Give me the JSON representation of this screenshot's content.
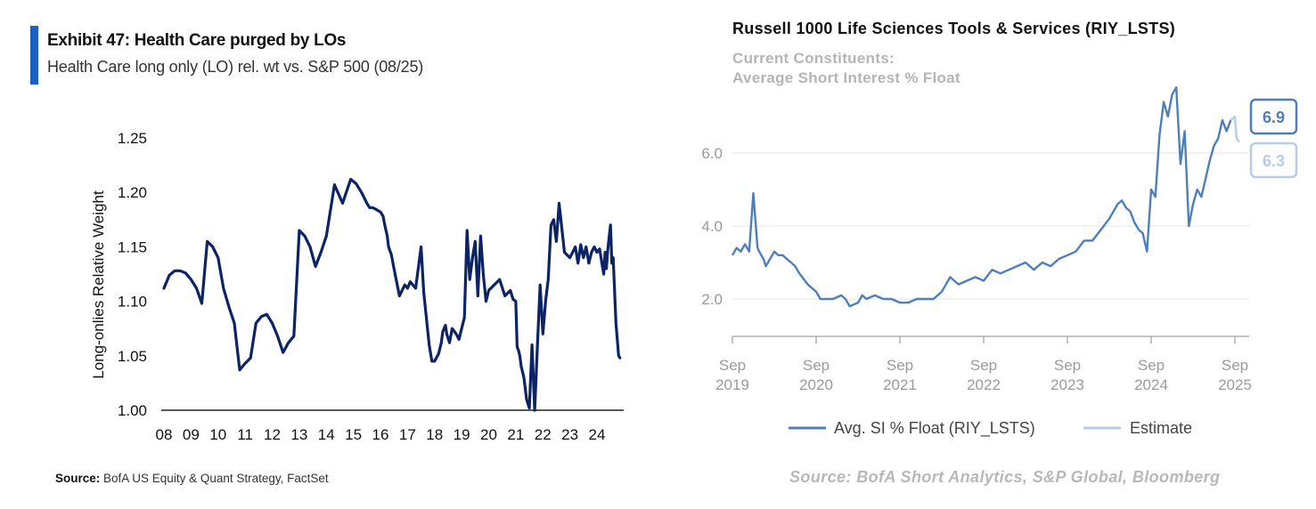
{
  "colors": {
    "accent": "#1d5fbf",
    "left_line": "#0c2466",
    "right_line": "#4f7fba",
    "estimate_line": "#b6cde8"
  },
  "left": {
    "title": "Exhibit 47: Health Care purged by LOs",
    "subtitle": "Health Care long only (LO) rel. wt vs. S&P 500 (08/25)",
    "source_label": "Source:",
    "source_text": " BofA US Equity & Quant Strategy, FactSet"
  },
  "right": {
    "title": "Russell 1000 Life Sciences Tools & Services (RIY_LSTS)",
    "subtitle_line1": "Current Constituents:",
    "subtitle_line2": "Average Short Interest % Float",
    "source": "Source: BofA Short Analytics, S&P Global, Bloomberg"
  },
  "chart_data": [
    {
      "type": "line",
      "title": "",
      "xlabel": "",
      "ylabel": "Long-onlies Relative Weight",
      "xlim": [
        2008.0,
        2025.9
      ],
      "ylim": [
        1.0,
        1.25
      ],
      "yticks": [
        1.0,
        1.05,
        1.1,
        1.15,
        1.2,
        1.25
      ],
      "ytick_labels": [
        "1.00",
        "1.05",
        "1.10",
        "1.15",
        "1.20",
        "1.25"
      ],
      "xticks": [
        2008,
        2009,
        2010,
        2011,
        2012,
        2013,
        2014,
        2015,
        2016,
        2017,
        2018,
        2019,
        2020,
        2021,
        2022,
        2023,
        2024
      ],
      "xtick_labels": [
        "08",
        "09",
        "10",
        "11",
        "12",
        "13",
        "14",
        "15",
        "16",
        "17",
        "18",
        "19",
        "20",
        "21",
        "22",
        "23",
        "24"
      ],
      "grid": false,
      "series": [
        {
          "x": [
            2008.0,
            2008.2,
            2008.4,
            2008.6,
            2008.8,
            2009.0,
            2009.2,
            2009.4,
            2009.6,
            2009.8,
            2010.0,
            2010.2,
            2010.4,
            2010.6,
            2010.8,
            2011.0,
            2011.2,
            2011.4,
            2011.6,
            2011.8,
            2012.0,
            2012.2,
            2012.4,
            2012.6,
            2012.8,
            2013.0,
            2013.2,
            2013.4,
            2013.6,
            2013.8,
            2014.0,
            2014.3,
            2014.6,
            2014.9,
            2015.1,
            2015.3,
            2015.5,
            2015.6,
            2015.7,
            2015.8,
            2016.0,
            2016.1,
            2016.15,
            2016.25,
            2016.3,
            2016.4,
            2016.5,
            2016.7,
            2016.9,
            2017.0,
            2017.1,
            2017.3,
            2017.5,
            2017.6,
            2017.8,
            2017.9,
            2018.0,
            2018.15,
            2018.25,
            2018.3,
            2018.4,
            2018.45,
            2018.55,
            2018.65,
            2018.8,
            2018.9,
            2019.0,
            2019.1,
            2019.2,
            2019.3,
            2019.4,
            2019.5,
            2019.6,
            2019.7,
            2019.8,
            2019.9,
            2020.0,
            2020.2,
            2020.4,
            2020.6,
            2020.8,
            2020.9,
            2021.0,
            2021.05,
            2021.1,
            2021.15,
            2021.2,
            2021.3,
            2021.35,
            2021.4,
            2021.5,
            2021.6,
            2021.7,
            2021.8,
            2021.9,
            2022.0,
            2022.1,
            2022.2,
            2022.3,
            2022.4,
            2022.5,
            2022.6,
            2022.8,
            2023.0,
            2023.1,
            2023.2,
            2023.3,
            2023.4,
            2023.5,
            2023.6,
            2023.7,
            2023.8,
            2023.9,
            2024.0,
            2024.1,
            2024.2,
            2024.25,
            2024.3,
            2024.35,
            2024.4,
            2024.5,
            2024.55,
            2024.6,
            2024.7,
            2024.8,
            2024.85
          ],
          "values": [
            1.112,
            1.124,
            1.128,
            1.128,
            1.126,
            1.12,
            1.112,
            1.098,
            1.155,
            1.15,
            1.14,
            1.112,
            1.095,
            1.08,
            1.037,
            1.043,
            1.048,
            1.08,
            1.086,
            1.088,
            1.08,
            1.068,
            1.053,
            1.062,
            1.068,
            1.165,
            1.16,
            1.15,
            1.132,
            1.145,
            1.16,
            1.207,
            1.19,
            1.212,
            1.208,
            1.2,
            1.19,
            1.186,
            1.186,
            1.185,
            1.182,
            1.178,
            1.171,
            1.16,
            1.15,
            1.143,
            1.13,
            1.105,
            1.115,
            1.112,
            1.118,
            1.112,
            1.15,
            1.108,
            1.06,
            1.045,
            1.045,
            1.052,
            1.062,
            1.072,
            1.078,
            1.07,
            1.062,
            1.075,
            1.07,
            1.065,
            1.075,
            1.085,
            1.165,
            1.12,
            1.14,
            1.155,
            1.105,
            1.16,
            1.125,
            1.1,
            1.11,
            1.115,
            1.12,
            1.105,
            1.11,
            1.102,
            1.1,
            1.058,
            1.055,
            1.05,
            1.04,
            1.03,
            1.02,
            1.01,
            1.002,
            1.06,
            1.0,
            1.06,
            1.115,
            1.07,
            1.1,
            1.12,
            1.17,
            1.175,
            1.155,
            1.19,
            1.145,
            1.14,
            1.145,
            1.15,
            1.135,
            1.152,
            1.14,
            1.15,
            1.135,
            1.145,
            1.15,
            1.145,
            1.148,
            1.132,
            1.125,
            1.145,
            1.13,
            1.148,
            1.17,
            1.135,
            1.14,
            1.08,
            1.05,
            1.048
          ]
        }
      ]
    },
    {
      "type": "line",
      "title": "Russell 1000 Life Sciences Tools & Services (RIY_LSTS)",
      "xlabel": "",
      "ylabel": "",
      "xlim": [
        2019.7,
        2025.9
      ],
      "ylim": [
        0.0,
        8.0
      ],
      "yticks": [
        2.0,
        4.0,
        6.0
      ],
      "ytick_labels": [
        "2.0",
        "4.0",
        "6.0"
      ],
      "xticks": [
        2019.7,
        2020.7,
        2021.7,
        2022.7,
        2023.7,
        2024.7,
        2025.7
      ],
      "xtick_labels_line1": [
        "Sep",
        "Sep",
        "Sep",
        "Sep",
        "Sep",
        "Sep",
        "Sep"
      ],
      "xtick_labels_line2": [
        "2019",
        "2020",
        "2021",
        "2022",
        "2023",
        "2024",
        "2025"
      ],
      "grid": true,
      "legend_position": "bottom",
      "last_value_labels": {
        "actual": "6.9",
        "estimate": "6.3"
      },
      "series": [
        {
          "name": "Avg. SI % Float (RIY_LSTS)",
          "x": [
            2019.7,
            2019.75,
            2019.8,
            2019.85,
            2019.9,
            2019.95,
            2020.0,
            2020.02,
            2020.07,
            2020.1,
            2020.2,
            2020.25,
            2020.3,
            2020.4,
            2020.45,
            2020.5,
            2020.6,
            2020.7,
            2020.75,
            2020.8,
            2020.9,
            2021.0,
            2021.05,
            2021.1,
            2021.2,
            2021.25,
            2021.3,
            2021.4,
            2021.5,
            2021.6,
            2021.7,
            2021.8,
            2021.9,
            2022.0,
            2022.1,
            2022.2,
            2022.3,
            2022.35,
            2022.4,
            2022.5,
            2022.6,
            2022.7,
            2022.8,
            2022.9,
            2023.0,
            2023.1,
            2023.2,
            2023.3,
            2023.4,
            2023.5,
            2023.6,
            2023.7,
            2023.8,
            2023.9,
            2024.0,
            2024.1,
            2024.2,
            2024.3,
            2024.35,
            2024.4,
            2024.45,
            2024.5,
            2024.55,
            2024.6,
            2024.65,
            2024.7,
            2024.75,
            2024.8,
            2024.85,
            2024.9,
            2024.95,
            2025.0,
            2025.05,
            2025.1,
            2025.15,
            2025.2,
            2025.25,
            2025.3,
            2025.35,
            2025.4,
            2025.45,
            2025.5,
            2025.55,
            2025.6,
            2025.65
          ],
          "values": [
            3.2,
            3.4,
            3.3,
            3.5,
            3.3,
            4.9,
            3.4,
            3.3,
            3.1,
            2.9,
            3.3,
            3.2,
            3.2,
            3.0,
            2.9,
            2.7,
            2.4,
            2.2,
            2.0,
            2.0,
            2.0,
            2.1,
            2.0,
            1.8,
            1.9,
            2.1,
            2.0,
            2.1,
            2.0,
            2.0,
            1.9,
            1.9,
            2.0,
            2.0,
            2.0,
            2.2,
            2.6,
            2.5,
            2.4,
            2.5,
            2.6,
            2.5,
            2.8,
            2.7,
            2.8,
            2.9,
            3.0,
            2.8,
            3.0,
            2.9,
            3.1,
            3.2,
            3.3,
            3.6,
            3.6,
            3.9,
            4.2,
            4.6,
            4.7,
            4.5,
            4.4,
            4.1,
            3.9,
            3.8,
            3.3,
            5.0,
            4.8,
            6.5,
            7.4,
            7.0,
            7.6,
            7.8,
            5.7,
            6.6,
            4.0,
            4.6,
            5.0,
            4.8,
            5.3,
            5.8,
            6.2,
            6.4,
            6.9,
            6.6,
            6.9
          ]
        },
        {
          "name": "Estimate",
          "x": [
            2025.65,
            2025.7,
            2025.72,
            2025.75
          ],
          "values": [
            6.9,
            7.0,
            6.4,
            6.3
          ]
        }
      ]
    }
  ]
}
